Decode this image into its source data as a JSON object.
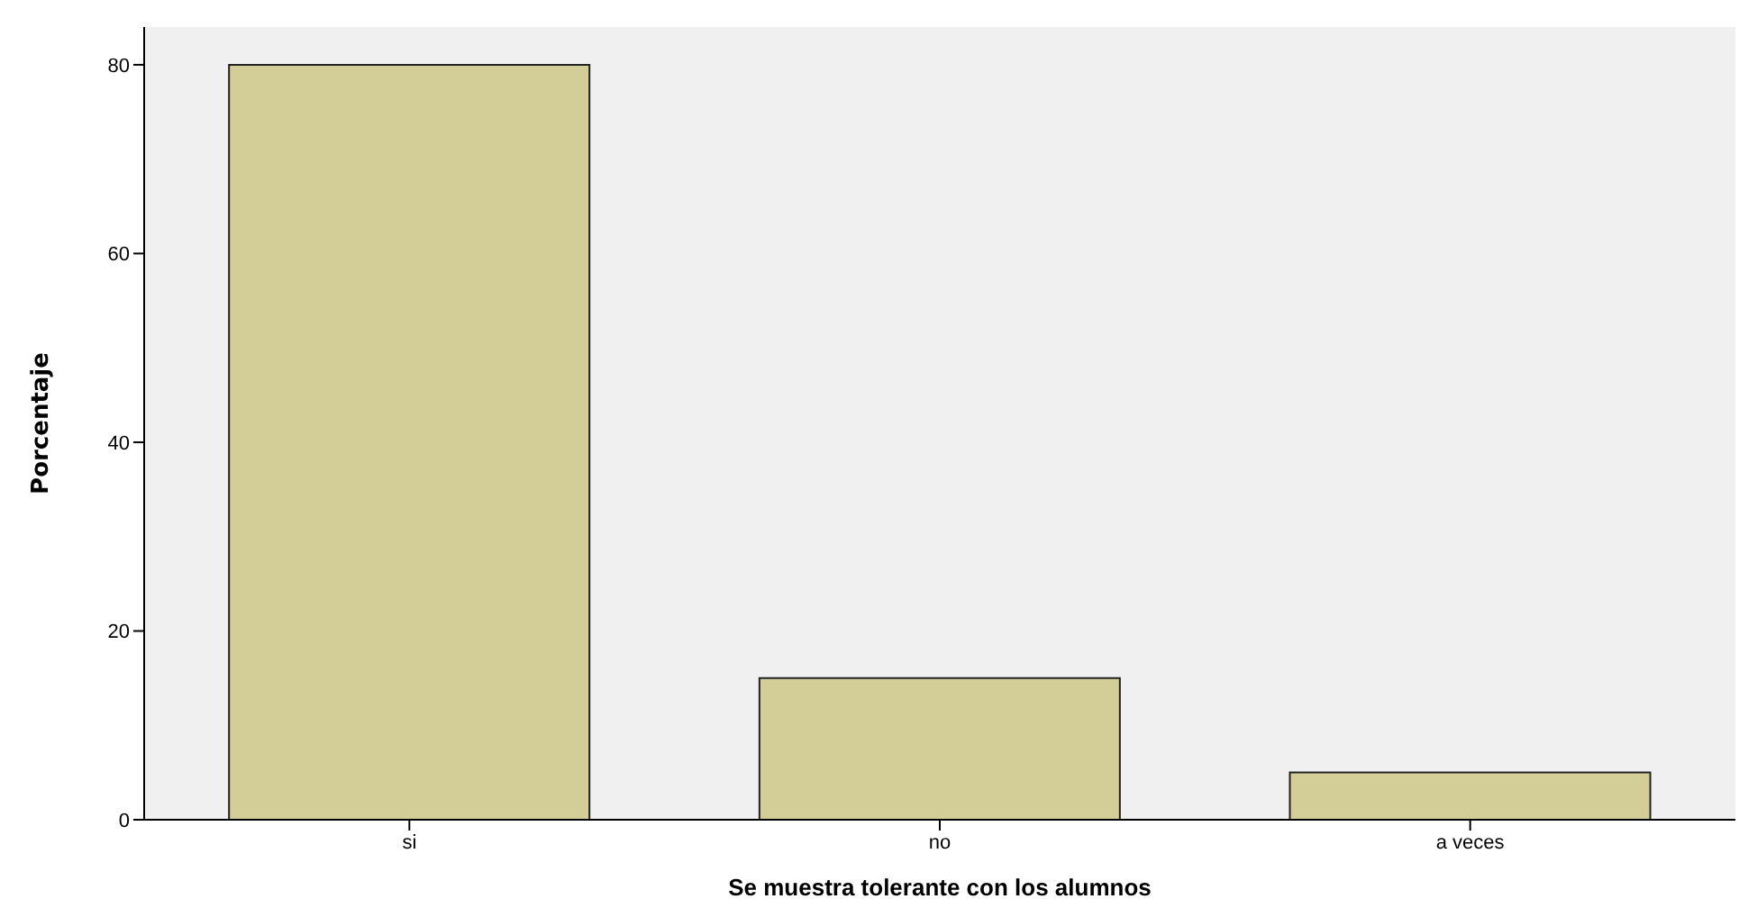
{
  "chart_data": {
    "type": "bar",
    "xlabel": "Se muestra tolerante con los alumnos",
    "ylabel": "Porcentaje",
    "categories": [
      "si",
      "no",
      "a veces"
    ],
    "values": [
      80,
      15,
      5
    ],
    "color": "#d3cd97",
    "ylim": [
      0,
      84
    ],
    "yticks": [
      0,
      20,
      40,
      60,
      80
    ],
    "grid": false
  }
}
